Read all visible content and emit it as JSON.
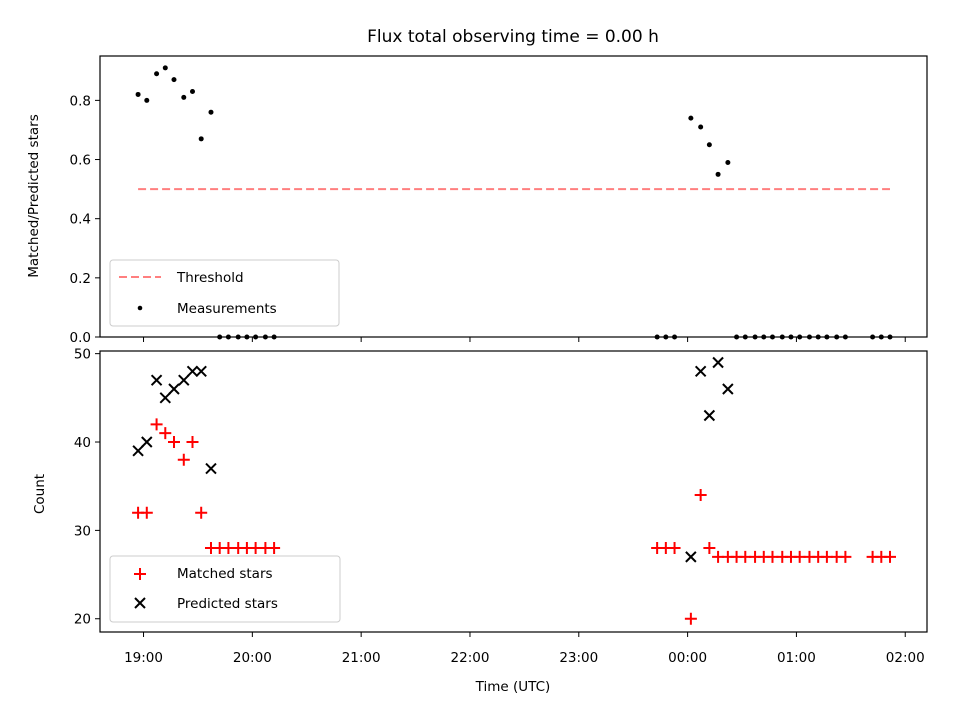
{
  "chart_data": [
    {
      "type": "scatter",
      "title": "Flux total observing time = 0.00 h",
      "xlabel": "",
      "ylabel": "Matched/Predicted stars",
      "ylim": [
        0,
        0.95
      ],
      "yticks": [
        0.0,
        0.2,
        0.4,
        0.6,
        0.8
      ],
      "ytick_labels": [
        "0.0",
        "0.2",
        "0.4",
        "0.6",
        "0.8"
      ],
      "legend_position": "lower-left",
      "series": [
        {
          "name": "Threshold",
          "style": "dashed-line",
          "color": "#ff7f7f",
          "x": [
            -0.05,
            6.86
          ],
          "y": [
            0.5,
            0.5
          ]
        },
        {
          "name": "Measurements",
          "style": "dot",
          "color": "#000000",
          "x": [
            -0.05,
            0.03,
            0.12,
            0.2,
            0.28,
            0.37,
            0.45,
            0.53,
            0.62,
            0.7,
            0.78,
            0.87,
            0.95,
            1.03,
            1.12,
            1.2,
            4.72,
            4.8,
            4.88,
            5.03,
            5.12,
            5.2,
            5.28,
            5.37,
            5.45,
            5.53,
            5.62,
            5.7,
            5.78,
            5.87,
            5.95,
            6.03,
            6.12,
            6.2,
            6.28,
            6.37,
            6.45,
            6.7,
            6.78,
            6.86
          ],
          "y": [
            0.82,
            0.8,
            0.89,
            0.91,
            0.87,
            0.81,
            0.83,
            0.67,
            0.76,
            0,
            0,
            0,
            0,
            0,
            0,
            0,
            0,
            0,
            0,
            0.74,
            0.71,
            0.65,
            0.55,
            0.59,
            0,
            0,
            0,
            0,
            0,
            0,
            0,
            0,
            0,
            0,
            0,
            0,
            0,
            0,
            0,
            0
          ]
        }
      ]
    },
    {
      "type": "scatter",
      "title": "",
      "xlabel": "Time (UTC)",
      "ylabel": "Count",
      "xlim": [
        -0.4,
        7.2
      ],
      "ylim": [
        18.5,
        50.3
      ],
      "yticks": [
        20,
        30,
        40,
        50
      ],
      "ytick_labels": [
        "20",
        "30",
        "40",
        "50"
      ],
      "xticks": [
        0,
        1,
        2,
        3,
        4,
        5,
        6,
        7
      ],
      "xtick_labels": [
        "19:00",
        "20:00",
        "21:00",
        "22:00",
        "23:00",
        "00:00",
        "01:00",
        "02:00"
      ],
      "legend_position": "lower-left",
      "series": [
        {
          "name": "Matched stars",
          "marker": "plus",
          "color": "#ff0000",
          "x": [
            -0.05,
            0.03,
            0.12,
            0.2,
            0.28,
            0.37,
            0.45,
            0.53,
            0.62,
            0.7,
            0.78,
            0.87,
            0.95,
            1.03,
            1.12,
            1.2,
            4.72,
            4.8,
            4.88,
            5.03,
            5.12,
            5.2,
            5.28,
            5.37,
            5.45,
            5.53,
            5.62,
            5.7,
            5.78,
            5.87,
            5.95,
            6.03,
            6.12,
            6.2,
            6.28,
            6.37,
            6.45,
            6.7,
            6.78,
            6.86
          ],
          "y": [
            32,
            32,
            42,
            41,
            40,
            38,
            40,
            32,
            28,
            28,
            28,
            28,
            28,
            28,
            28,
            28,
            28,
            28,
            28,
            20,
            34,
            28,
            27,
            27,
            27,
            27,
            27,
            27,
            27,
            27,
            27,
            27,
            27,
            27,
            27,
            27,
            27,
            27,
            27,
            27
          ]
        },
        {
          "name": "Predicted stars",
          "marker": "x",
          "color": "#000000",
          "x": [
            -0.05,
            0.03,
            0.12,
            0.2,
            0.28,
            0.37,
            0.45,
            0.53,
            0.62,
            5.03,
            5.12,
            5.2,
            5.28,
            5.37
          ],
          "y": [
            39,
            40,
            47,
            45,
            46,
            47,
            48,
            48,
            37,
            27,
            48,
            43,
            49,
            46
          ]
        }
      ]
    }
  ]
}
